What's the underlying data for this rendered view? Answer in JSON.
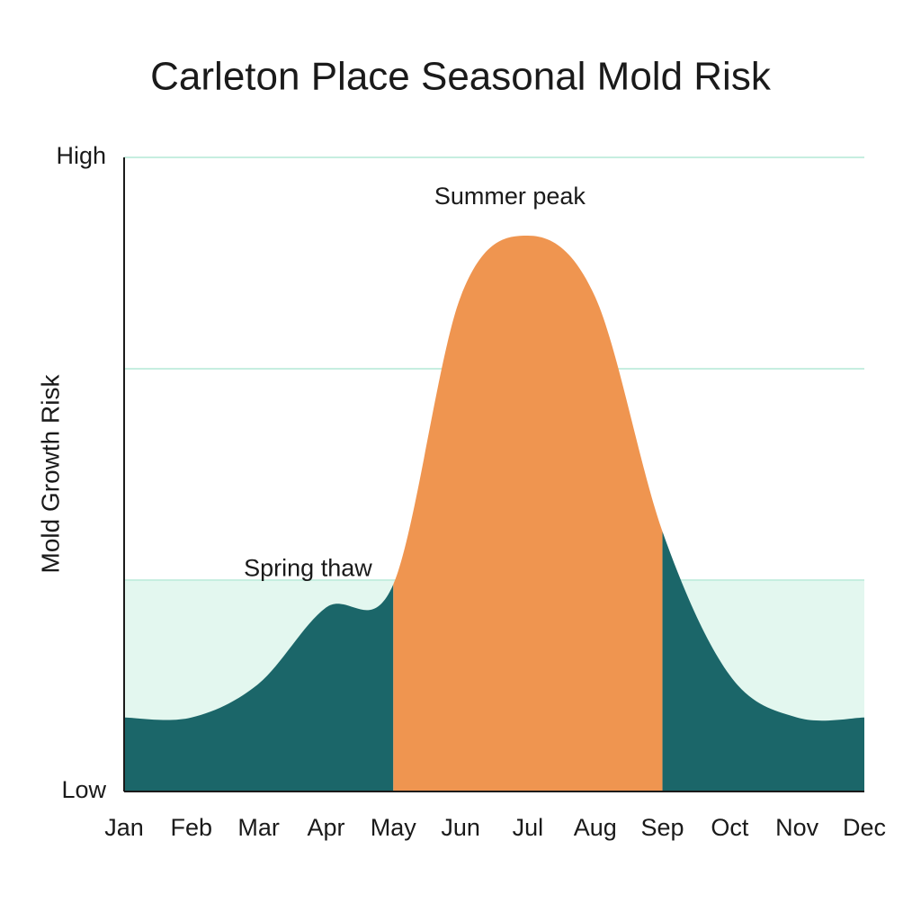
{
  "chart_data": {
    "type": "area",
    "title": "Carleton Place Seasonal Mold Risk",
    "y_label": "Mold Growth Risk",
    "categories": [
      "Jan",
      "Feb",
      "Mar",
      "Apr",
      "May",
      "Jun",
      "Jul",
      "Aug",
      "Sep",
      "Oct",
      "Nov",
      "Dec"
    ],
    "values": [
      0.35,
      0.35,
      0.51,
      0.87,
      0.98,
      2.34,
      2.63,
      2.34,
      1.23,
      0.55,
      0.35,
      0.35
    ],
    "color": "#1b6669",
    "highlight": {
      "from_index": 4,
      "to_index": 8,
      "color": "#ef9550"
    },
    "band": {
      "from": 0,
      "to": 1,
      "color": "#e3f7ef"
    },
    "ylim": [
      0,
      3
    ],
    "yticks": [
      {
        "value": 0,
        "label": "Low"
      },
      {
        "value": 1,
        "label": null
      },
      {
        "value": 2,
        "label": null
      },
      {
        "value": 3,
        "label": "High"
      }
    ],
    "grid": true,
    "grid_color": "#c6eee0",
    "annotations": [
      {
        "text": "Summer peak",
        "category": "Jul"
      },
      {
        "text": "Spring thaw",
        "category": "Apr"
      }
    ]
  }
}
